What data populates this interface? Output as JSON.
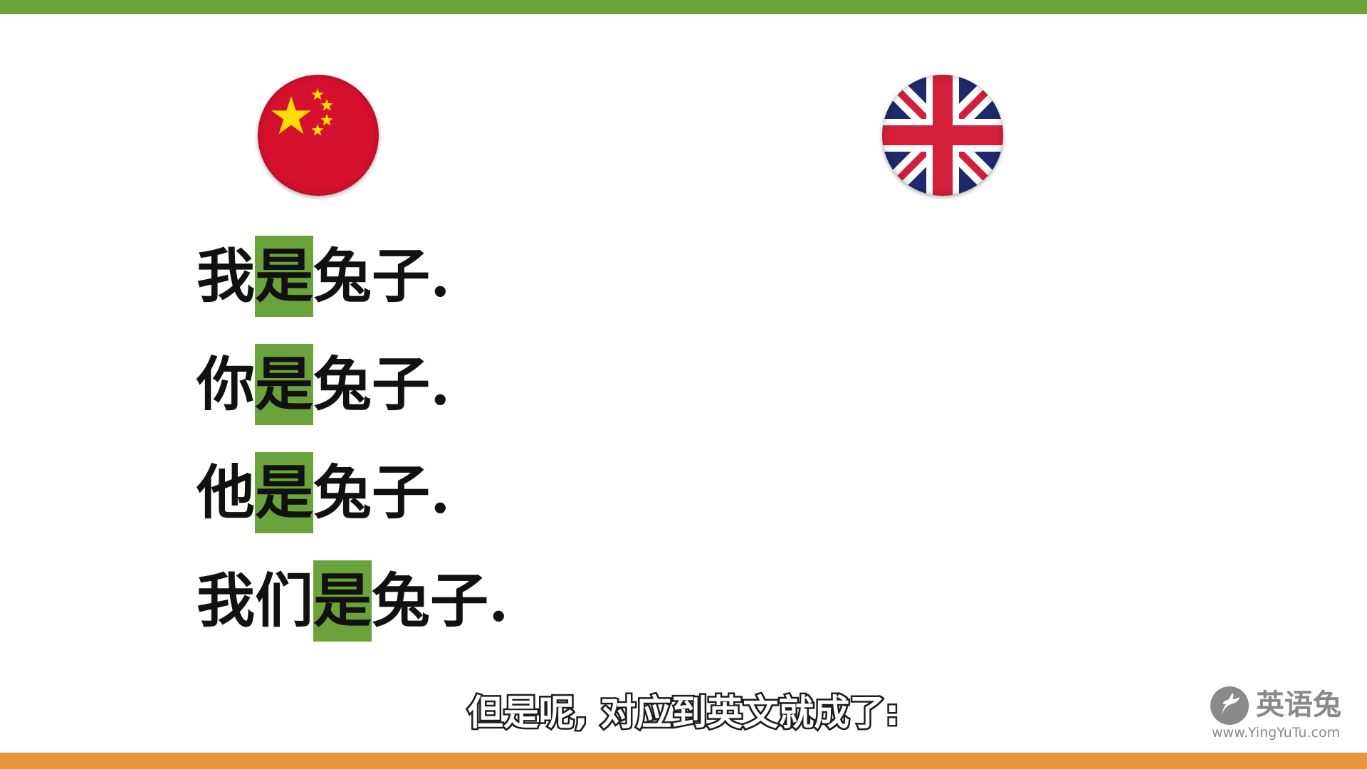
{
  "colors": {
    "top_bar": "#6aa33b",
    "bottom_bar": "#e8963c",
    "highlight": "#6aa33b",
    "text": "#111111",
    "logo_gray": "#8a8a8a",
    "cn_red": "#d6112f",
    "cn_yellow": "#ffdd00",
    "uk_blue": "#1f2a6b",
    "uk_red": "#d31f3a"
  },
  "flags": {
    "left": "china-flag-icon",
    "right": "uk-flag-icon"
  },
  "sentences": [
    {
      "before": "我",
      "highlight": "是",
      "after": "兔子."
    },
    {
      "before": "你",
      "highlight": "是",
      "after": "兔子."
    },
    {
      "before": "他",
      "highlight": "是",
      "after": "兔子."
    },
    {
      "before": "我们",
      "highlight": "是",
      "after": "兔子."
    }
  ],
  "subtitle": "但是呢, 对应到英文就成了:",
  "logo": {
    "icon": "rabbit-logo-icon",
    "name": "英语兔",
    "url": "www.YingYuTu.com"
  }
}
